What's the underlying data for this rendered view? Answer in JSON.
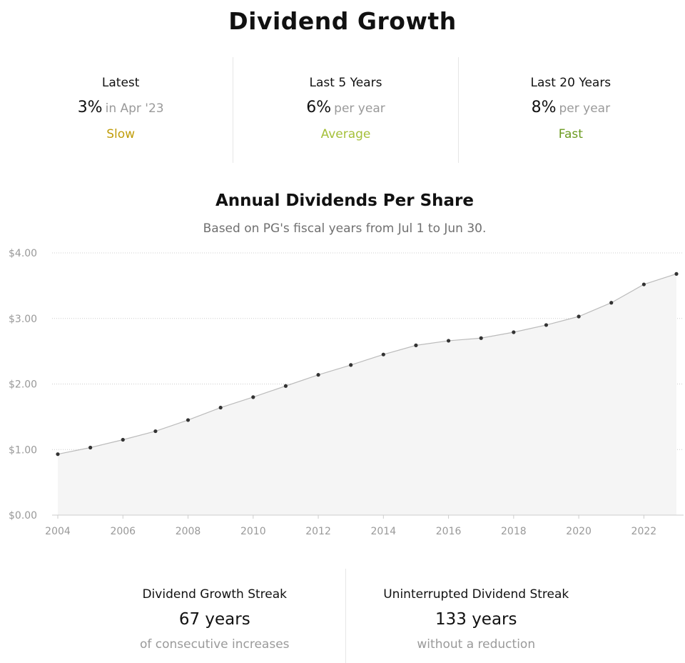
{
  "page": {
    "title": "Dividend Growth"
  },
  "stats": [
    {
      "label": "Latest",
      "value": "3%",
      "suffix": "in Apr '23",
      "rating": "Slow",
      "rating_color": "#c09d0b"
    },
    {
      "label": "Last 5 Years",
      "value": "6%",
      "suffix": "per year",
      "rating": "Average",
      "rating_color": "#a5c03a"
    },
    {
      "label": "Last 20 Years",
      "value": "8%",
      "suffix": "per year",
      "rating": "Fast",
      "rating_color": "#6b9a1f"
    }
  ],
  "chart_data": {
    "type": "area",
    "title": "Annual Dividends Per Share",
    "subtitle": "Based on PG's fiscal years from Jul 1 to Jun 30.",
    "x": [
      2004,
      2005,
      2006,
      2007,
      2008,
      2009,
      2010,
      2011,
      2012,
      2013,
      2014,
      2015,
      2016,
      2017,
      2018,
      2019,
      2020,
      2021,
      2022,
      2023
    ],
    "values": [
      0.93,
      1.03,
      1.15,
      1.28,
      1.45,
      1.64,
      1.8,
      1.97,
      2.14,
      2.29,
      2.45,
      2.59,
      2.66,
      2.7,
      2.79,
      2.9,
      3.03,
      3.24,
      3.52,
      3.68
    ],
    "xlim": [
      2004,
      2023
    ],
    "ylim": [
      0,
      4
    ],
    "x_tick_labels": [
      "2004",
      "2006",
      "2008",
      "2010",
      "2012",
      "2014",
      "2016",
      "2018",
      "2020",
      "2022"
    ],
    "y_tick_labels": [
      "$0.00",
      "$1.00",
      "$2.00",
      "$3.00",
      "$4.00"
    ],
    "grid": true,
    "colors": {
      "line": "#bbbbbb",
      "fill": "#f5f5f5",
      "point": "#333333",
      "grid": "#cccccc",
      "tick_text": "#999999"
    }
  },
  "streaks": [
    {
      "label": "Dividend Growth Streak",
      "value": "67 years",
      "caption": "of consecutive increases"
    },
    {
      "label": "Uninterrupted Dividend Streak",
      "value": "133 years",
      "caption": "without a reduction"
    }
  ]
}
